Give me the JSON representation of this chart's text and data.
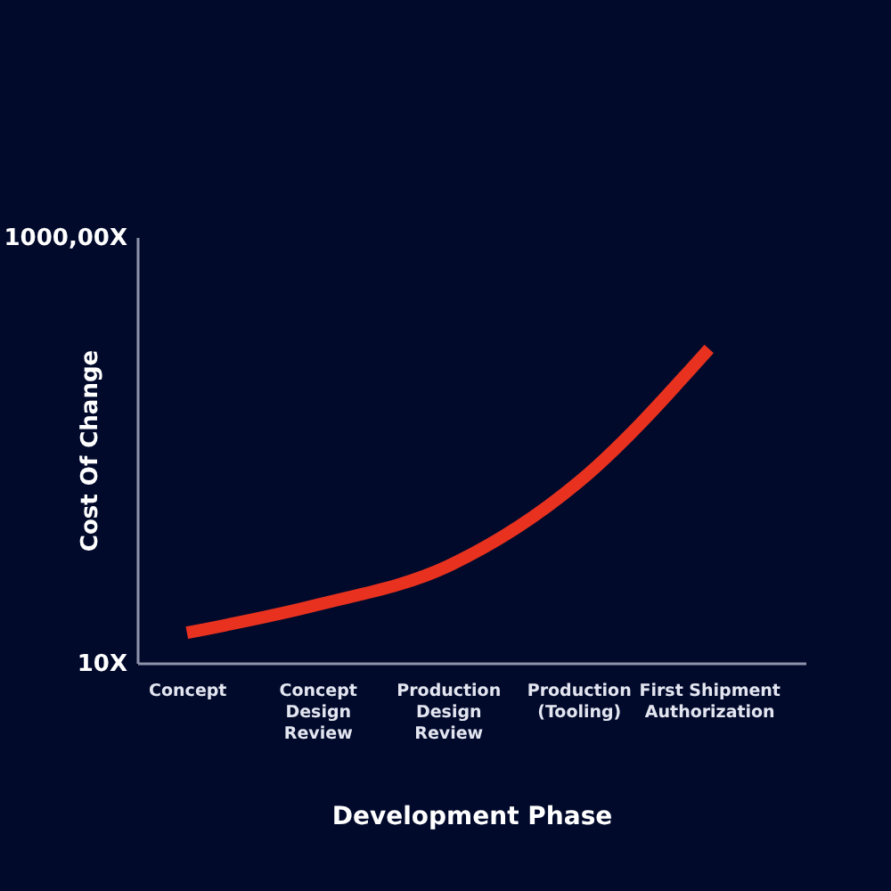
{
  "chart_data": {
    "type": "line",
    "xlabel": "Development Phase",
    "ylabel": "Cost Of Change",
    "categories": [
      "Concept",
      "Concept Design Review",
      "Production Design Review",
      "Production (Tooling)",
      "First Shipment Authorization"
    ],
    "series": [
      {
        "color": "#e8321f",
        "values": [
          80,
          145,
          235,
          430,
          740
        ]
      }
    ],
    "ylim": [
      10,
      1000
    ],
    "yticks": [
      {
        "value": 10,
        "label": "10X"
      },
      {
        "value": 1000,
        "label": "1000,00X"
      }
    ],
    "grid": false,
    "legend": false
  }
}
